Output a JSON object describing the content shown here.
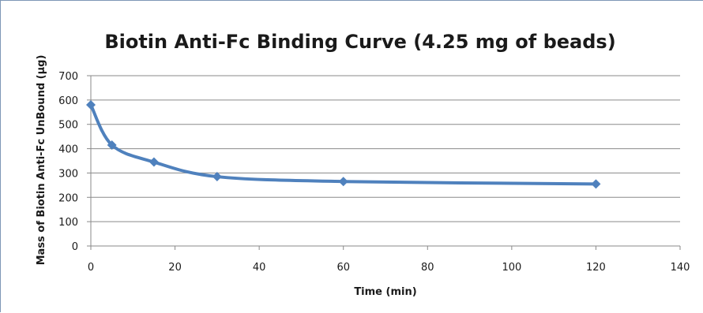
{
  "chart_data": {
    "type": "line",
    "title": "Biotin Anti-Fc Binding Curve (4.25 mg of beads)",
    "xlabel": "Time (min)",
    "ylabel": "Mass of Biotin Anti-Fc UnBound (µg)",
    "xlim": [
      0,
      140
    ],
    "ylim": [
      0,
      700
    ],
    "x_ticks": [
      0,
      20,
      40,
      60,
      80,
      100,
      120,
      140
    ],
    "y_ticks": [
      0,
      100,
      200,
      300,
      400,
      500,
      600,
      700
    ],
    "grid": true,
    "smoothed": true,
    "marker": "diamond",
    "series": [
      {
        "color": "#4f81bd",
        "x": [
          0,
          5,
          15,
          30,
          60,
          120
        ],
        "y": [
          580,
          415,
          345,
          285,
          265,
          255
        ]
      }
    ]
  }
}
